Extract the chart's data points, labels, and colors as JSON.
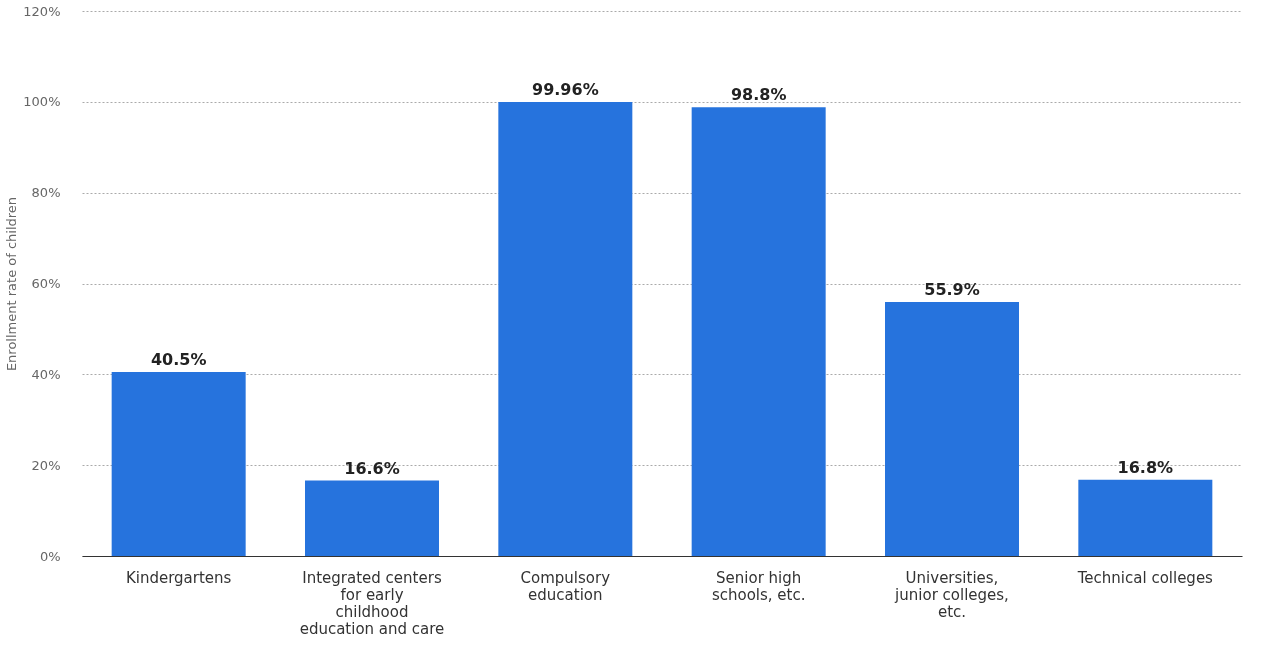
{
  "chart_data": {
    "type": "bar",
    "ylabel": "Enrollment rate of children",
    "categories": [
      "Kindergartens",
      "Integrated centers for early childhood education and care",
      "Compulsory education",
      "Senior high schools, etc.",
      "Universities, junior colleges, etc.",
      "Technical colleges"
    ],
    "values": [
      40.5,
      16.6,
      99.96,
      98.8,
      55.9,
      16.8
    ],
    "value_labels": [
      "40.5%",
      "16.6%",
      "99.96%",
      "98.8%",
      "55.9%",
      "16.8%"
    ],
    "color": "#2673dd",
    "ylim": [
      0,
      120
    ],
    "yticks": [
      {
        "value": 0,
        "label": "0%"
      },
      {
        "value": 20,
        "label": "20%"
      },
      {
        "value": 40,
        "label": "40%"
      },
      {
        "value": 60,
        "label": "60%"
      },
      {
        "value": 80,
        "label": "80%"
      },
      {
        "value": 100,
        "label": "100%"
      },
      {
        "value": 120,
        "label": "120%"
      }
    ],
    "grid": "y"
  }
}
